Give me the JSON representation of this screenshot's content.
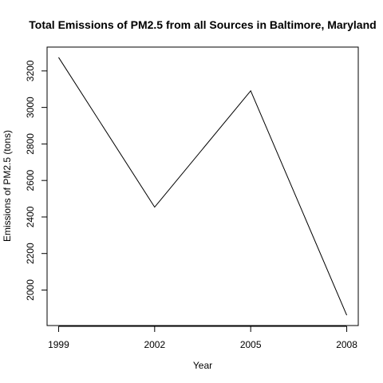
{
  "chart_data": {
    "type": "line",
    "title": "Total Emissions of PM2.5 from all Sources in Baltimore, Maryland",
    "xlabel": "Year",
    "ylabel": "Emissions of PM2.5 (tons)",
    "x": [
      1999,
      2002,
      2005,
      2008
    ],
    "series": [
      {
        "values": [
          3274,
          2454,
          3091,
          1862
        ]
      }
    ],
    "xticks": [
      "1999",
      "2002",
      "2005",
      "2008"
    ],
    "yticks": [
      "2000",
      "2200",
      "2400",
      "2600",
      "2800",
      "3000",
      "3200"
    ],
    "xlim": [
      1998.64,
      2008.36
    ],
    "ylim": [
      1805.5,
      3330.5
    ],
    "grid": false,
    "legend": "none",
    "line_color": "#000000"
  }
}
